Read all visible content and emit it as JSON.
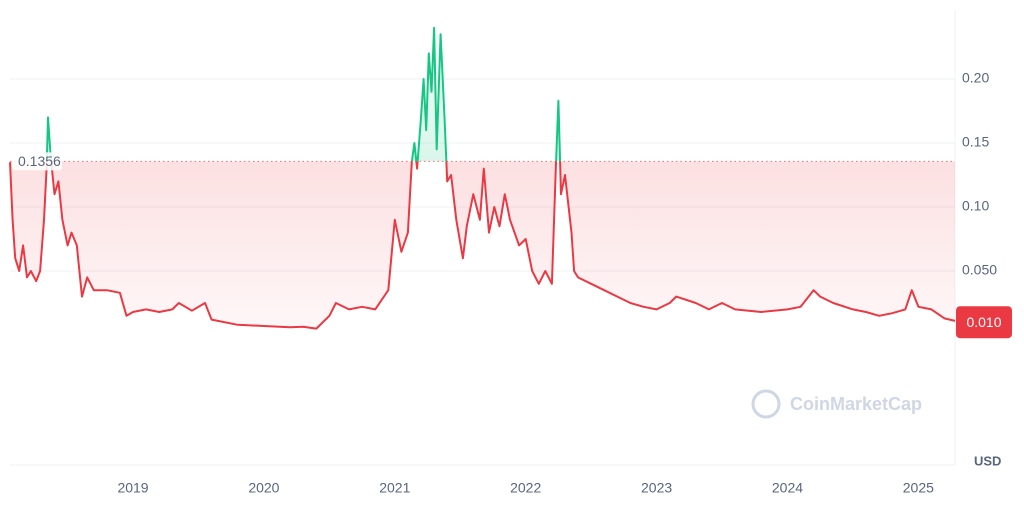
{
  "chart_data": {
    "type": "line",
    "x": [
      2018.06,
      2018.08,
      2018.1,
      2018.13,
      2018.16,
      2018.19,
      2018.22,
      2018.26,
      2018.29,
      2018.32,
      2018.34,
      2018.35,
      2018.37,
      2018.4,
      2018.43,
      2018.46,
      2018.5,
      2018.53,
      2018.57,
      2018.61,
      2018.65,
      2018.7,
      2018.8,
      2018.9,
      2018.95,
      2019.0,
      2019.1,
      2019.2,
      2019.3,
      2019.35,
      2019.45,
      2019.55,
      2019.6,
      2019.8,
      2020.0,
      2020.2,
      2020.3,
      2020.4,
      2020.5,
      2020.55,
      2020.65,
      2020.75,
      2020.85,
      2020.95,
      2021.0,
      2021.05,
      2021.1,
      2021.13,
      2021.15,
      2021.17,
      2021.2,
      2021.22,
      2021.24,
      2021.26,
      2021.28,
      2021.3,
      2021.32,
      2021.35,
      2021.38,
      2021.4,
      2021.43,
      2021.47,
      2021.52,
      2021.55,
      2021.6,
      2021.65,
      2021.68,
      2021.72,
      2021.76,
      2021.8,
      2021.84,
      2021.88,
      2021.95,
      2022.0,
      2022.05,
      2022.1,
      2022.15,
      2022.2,
      2022.23,
      2022.25,
      2022.27,
      2022.3,
      2022.35,
      2022.37,
      2022.4,
      2022.5,
      2022.6,
      2022.7,
      2022.8,
      2022.9,
      2023.0,
      2023.1,
      2023.15,
      2023.3,
      2023.4,
      2023.5,
      2023.6,
      2023.8,
      2024.0,
      2024.1,
      2024.2,
      2024.25,
      2024.35,
      2024.5,
      2024.6,
      2024.7,
      2024.8,
      2024.9,
      2024.95,
      2025.0,
      2025.1,
      2025.2,
      2025.28
    ],
    "values": [
      0.135,
      0.09,
      0.06,
      0.05,
      0.07,
      0.045,
      0.05,
      0.042,
      0.05,
      0.09,
      0.13,
      0.17,
      0.14,
      0.11,
      0.12,
      0.09,
      0.07,
      0.08,
      0.07,
      0.03,
      0.045,
      0.035,
      0.035,
      0.033,
      0.015,
      0.018,
      0.02,
      0.018,
      0.02,
      0.025,
      0.019,
      0.025,
      0.012,
      0.008,
      0.007,
      0.006,
      0.0065,
      0.005,
      0.015,
      0.025,
      0.02,
      0.022,
      0.02,
      0.035,
      0.09,
      0.065,
      0.08,
      0.135,
      0.15,
      0.13,
      0.17,
      0.2,
      0.16,
      0.22,
      0.19,
      0.24,
      0.145,
      0.235,
      0.17,
      0.12,
      0.125,
      0.09,
      0.06,
      0.085,
      0.11,
      0.09,
      0.13,
      0.08,
      0.1,
      0.085,
      0.11,
      0.09,
      0.07,
      0.075,
      0.05,
      0.04,
      0.05,
      0.04,
      0.13,
      0.183,
      0.11,
      0.125,
      0.08,
      0.05,
      0.045,
      0.04,
      0.035,
      0.03,
      0.025,
      0.022,
      0.02,
      0.025,
      0.03,
      0.025,
      0.02,
      0.025,
      0.02,
      0.018,
      0.02,
      0.022,
      0.035,
      0.03,
      0.025,
      0.02,
      0.018,
      0.015,
      0.017,
      0.02,
      0.035,
      0.022,
      0.02,
      0.013,
      0.011
    ],
    "xlim": [
      2018.06,
      2025.28
    ],
    "xticks": [
      2019,
      2020,
      2021,
      2022,
      2023,
      2024,
      2025
    ],
    "ylim": [
      -0.1,
      0.25
    ],
    "yticks": [
      {
        "value": 0.05,
        "label": "0.050"
      },
      {
        "value": 0.1,
        "label": "0.10"
      },
      {
        "value": 0.15,
        "label": "0.15"
      },
      {
        "value": 0.2,
        "label": "0.20"
      }
    ],
    "grid": true,
    "baseline": {
      "value": 0.1356,
      "label": "0.1356"
    },
    "current_price": {
      "value": 0.01,
      "label": "0.010"
    },
    "color_up": "#16c784",
    "color_down": "#ea3943",
    "unit": "USD",
    "watermark": "CoinMarketCap"
  }
}
